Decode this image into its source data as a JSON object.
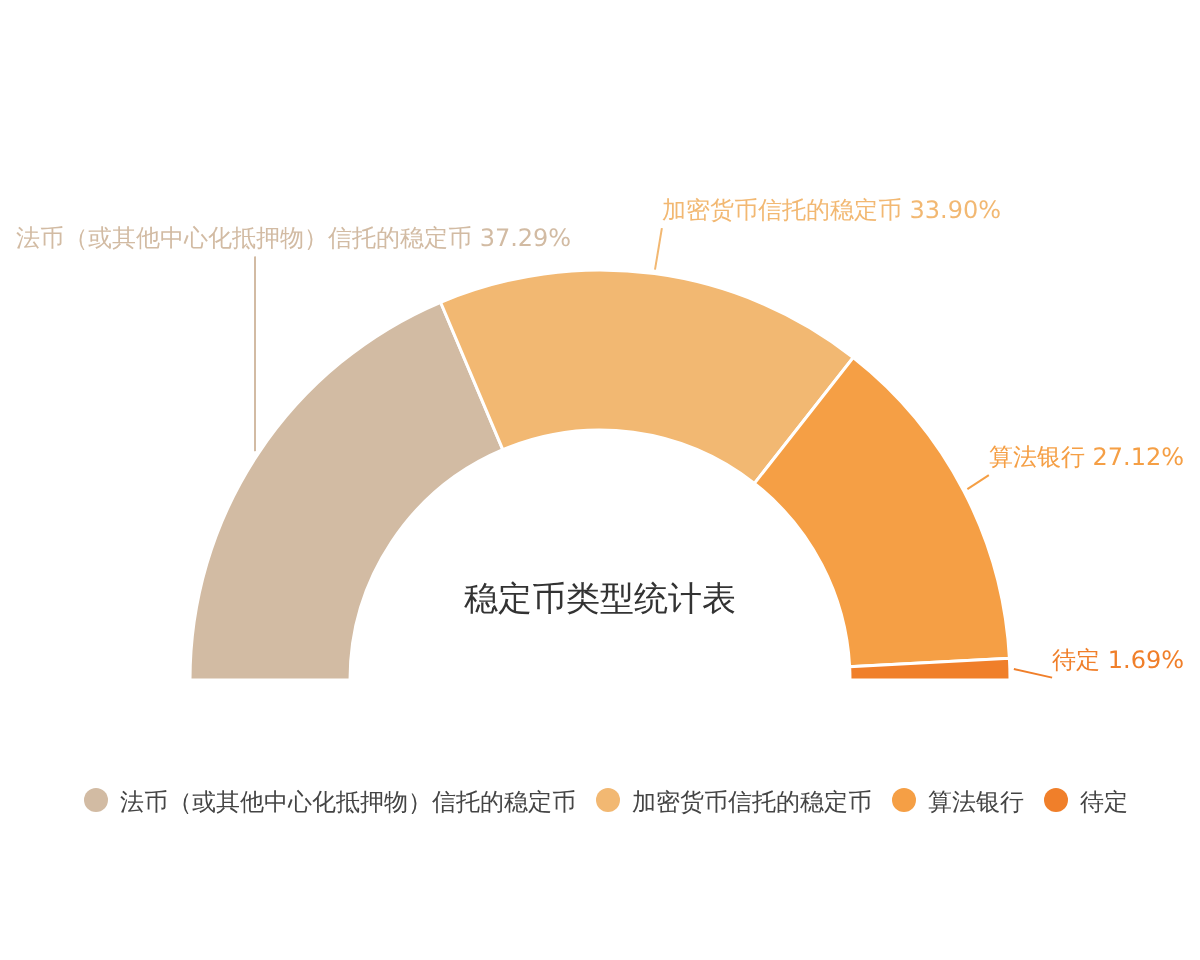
{
  "chart_data": {
    "type": "donut",
    "title": "稳定币类型统计表",
    "categories": [
      "法币（或其他中心化抵押物）信托的稳定币",
      "加密货币信托的稳定币",
      "算法银行",
      "待定"
    ],
    "values": [
      37.29,
      33.9,
      27.12,
      1.69
    ],
    "value_labels": [
      "37.29%",
      "33.90%",
      "27.12%",
      "1.69%"
    ],
    "colors": [
      "#d2bba3",
      "#f2b872",
      "#f59f45",
      "#f07f2a"
    ],
    "legend": "bottom"
  }
}
